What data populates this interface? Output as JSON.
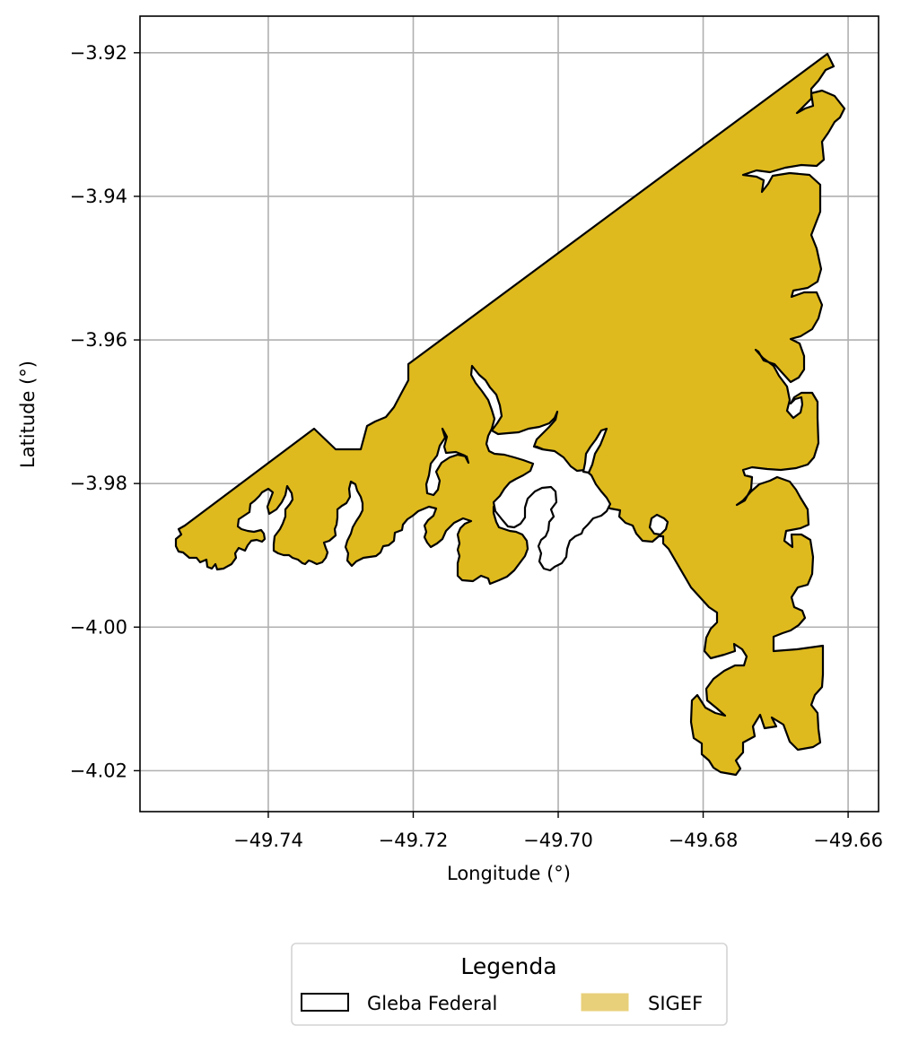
{
  "map": {
    "xlabel": "Longitude (°)",
    "ylabel": "Latitude (°)",
    "grid": true,
    "x_ticks": [
      "−49.74",
      "−49.72",
      "−49.70",
      "−49.68",
      "−49.66"
    ],
    "y_ticks": [
      "−3.92",
      "−3.94",
      "−3.96",
      "−3.98",
      "−4.00",
      "−4.02"
    ],
    "x_tick_values": [
      -49.74,
      -49.72,
      -49.7,
      -49.68,
      -49.66
    ],
    "y_tick_values": [
      -3.92,
      -3.94,
      -3.96,
      -3.98,
      -4.0,
      -4.02
    ],
    "xlim": [
      -49.7577,
      -49.6558
    ],
    "ylim": [
      -4.0257,
      -3.9149
    ],
    "layers": [
      {
        "name": "Gleba Federal",
        "fill": "none",
        "edge": "#000000"
      },
      {
        "name": "SIGEF",
        "fill": "#dfba1e",
        "edge": "#000000"
      }
    ]
  },
  "legend": {
    "title": "Legenda",
    "placement": "bottom-center",
    "items": [
      {
        "label": "Gleba Federal",
        "swatch_fill": "#ffffff",
        "swatch_edge": "#000000"
      },
      {
        "label": "SIGEF",
        "swatch_fill": "#e8d07a",
        "swatch_edge": "#e8d07a"
      }
    ]
  },
  "colors": {
    "polygon_fill": "#dfba1e",
    "polygon_edge": "#000000",
    "grid": "#b0b0b0"
  }
}
